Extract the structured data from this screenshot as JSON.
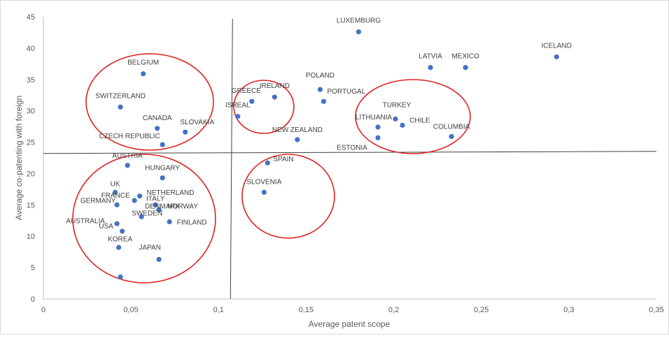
{
  "chart_data": {
    "type": "scatter",
    "title": "",
    "xlabel": "Average patent scope",
    "ylabel": "Average co-patenting with foreign",
    "xlim": [
      0,
      0.35
    ],
    "ylim": [
      0,
      45
    ],
    "x_ticks": [
      "0",
      "0,05",
      "0,1",
      "0,15",
      "0,2",
      "0,25",
      "0,3",
      "0,35"
    ],
    "y_ticks": [
      "0",
      "5",
      "10",
      "15",
      "20",
      "25",
      "30",
      "35",
      "40",
      "45"
    ],
    "grid": false,
    "legend": "none",
    "marker_color": "#4472c4",
    "highlight_color": "#e02020",
    "points": [
      {
        "label": "LUXEMBURG",
        "x": 0.18,
        "y": 42.6
      },
      {
        "label": "ICELAND",
        "x": 0.293,
        "y": 38.6
      },
      {
        "label": "LATVIA",
        "x": 0.221,
        "y": 36.9
      },
      {
        "label": "MEXICO",
        "x": 0.241,
        "y": 36.9
      },
      {
        "label": "BELGIUM",
        "x": 0.057,
        "y": 35.9
      },
      {
        "label": "POLAND",
        "x": 0.158,
        "y": 33.4
      },
      {
        "label": "IRELAND",
        "x": 0.132,
        "y": 32.2
      },
      {
        "label": "GREECE",
        "x": 0.119,
        "y": 31.5
      },
      {
        "label": "PORTUGAL",
        "x": 0.16,
        "y": 31.5
      },
      {
        "label": "SWITZERLAND",
        "x": 0.044,
        "y": 30.6
      },
      {
        "label": "ISREAL",
        "x": 0.111,
        "y": 29.1
      },
      {
        "label": "TURKEY",
        "x": 0.201,
        "y": 28.7
      },
      {
        "label": "CHILE",
        "x": 0.205,
        "y": 27.7
      },
      {
        "label": "LITHUANIA",
        "x": 0.191,
        "y": 27.4
      },
      {
        "label": "CANADA",
        "x": 0.065,
        "y": 27.2
      },
      {
        "label": "SLOVAKIA",
        "x": 0.081,
        "y": 26.6
      },
      {
        "label": "COLUMBIA",
        "x": 0.233,
        "y": 25.9
      },
      {
        "label": "ESTONIA",
        "x": 0.191,
        "y": 25.7
      },
      {
        "label": "NEW ZEALAND",
        "x": 0.145,
        "y": 25.4
      },
      {
        "label": "CZECH REPUBLIC",
        "x": 0.068,
        "y": 24.6
      },
      {
        "label": "SPAIN",
        "x": 0.128,
        "y": 21.7
      },
      {
        "label": "AUSTRIA",
        "x": 0.048,
        "y": 21.3
      },
      {
        "label": "HUNGARY",
        "x": 0.068,
        "y": 19.3
      },
      {
        "label": "SLOVENIA",
        "x": 0.126,
        "y": 17.0
      },
      {
        "label": "UK",
        "x": 0.041,
        "y": 17.0
      },
      {
        "label": "NETHERLAND",
        "x": 0.055,
        "y": 16.4
      },
      {
        "label": "FRANCE",
        "x": 0.052,
        "y": 15.7
      },
      {
        "label": "GERMANY",
        "x": 0.042,
        "y": 15.0
      },
      {
        "label": "ITALY",
        "x": 0.064,
        "y": 15.0
      },
      {
        "label": "DENMARK",
        "x": 0.066,
        "y": 14.2
      },
      {
        "label": "NORWAY",
        "x": 0.066,
        "y": 14.2
      },
      {
        "label": "SWEDEN",
        "x": 0.056,
        "y": 13.1
      },
      {
        "label": "FINLAND",
        "x": 0.072,
        "y": 12.3
      },
      {
        "label": "AUSTRALIA",
        "x": 0.042,
        "y": 12.0
      },
      {
        "label": "USA",
        "x": 0.045,
        "y": 10.8
      },
      {
        "label": "KOREA",
        "x": 0.043,
        "y": 8.2
      },
      {
        "label": "JAPAN",
        "x": 0.066,
        "y": 6.3
      },
      {
        "label": "",
        "x": 0.044,
        "y": 3.5
      }
    ],
    "reference_lines": [
      {
        "orientation": "vertical",
        "x": 0.108
      },
      {
        "orientation": "horizontal",
        "y": 23.2
      }
    ],
    "highlight_ellipses": 5
  }
}
